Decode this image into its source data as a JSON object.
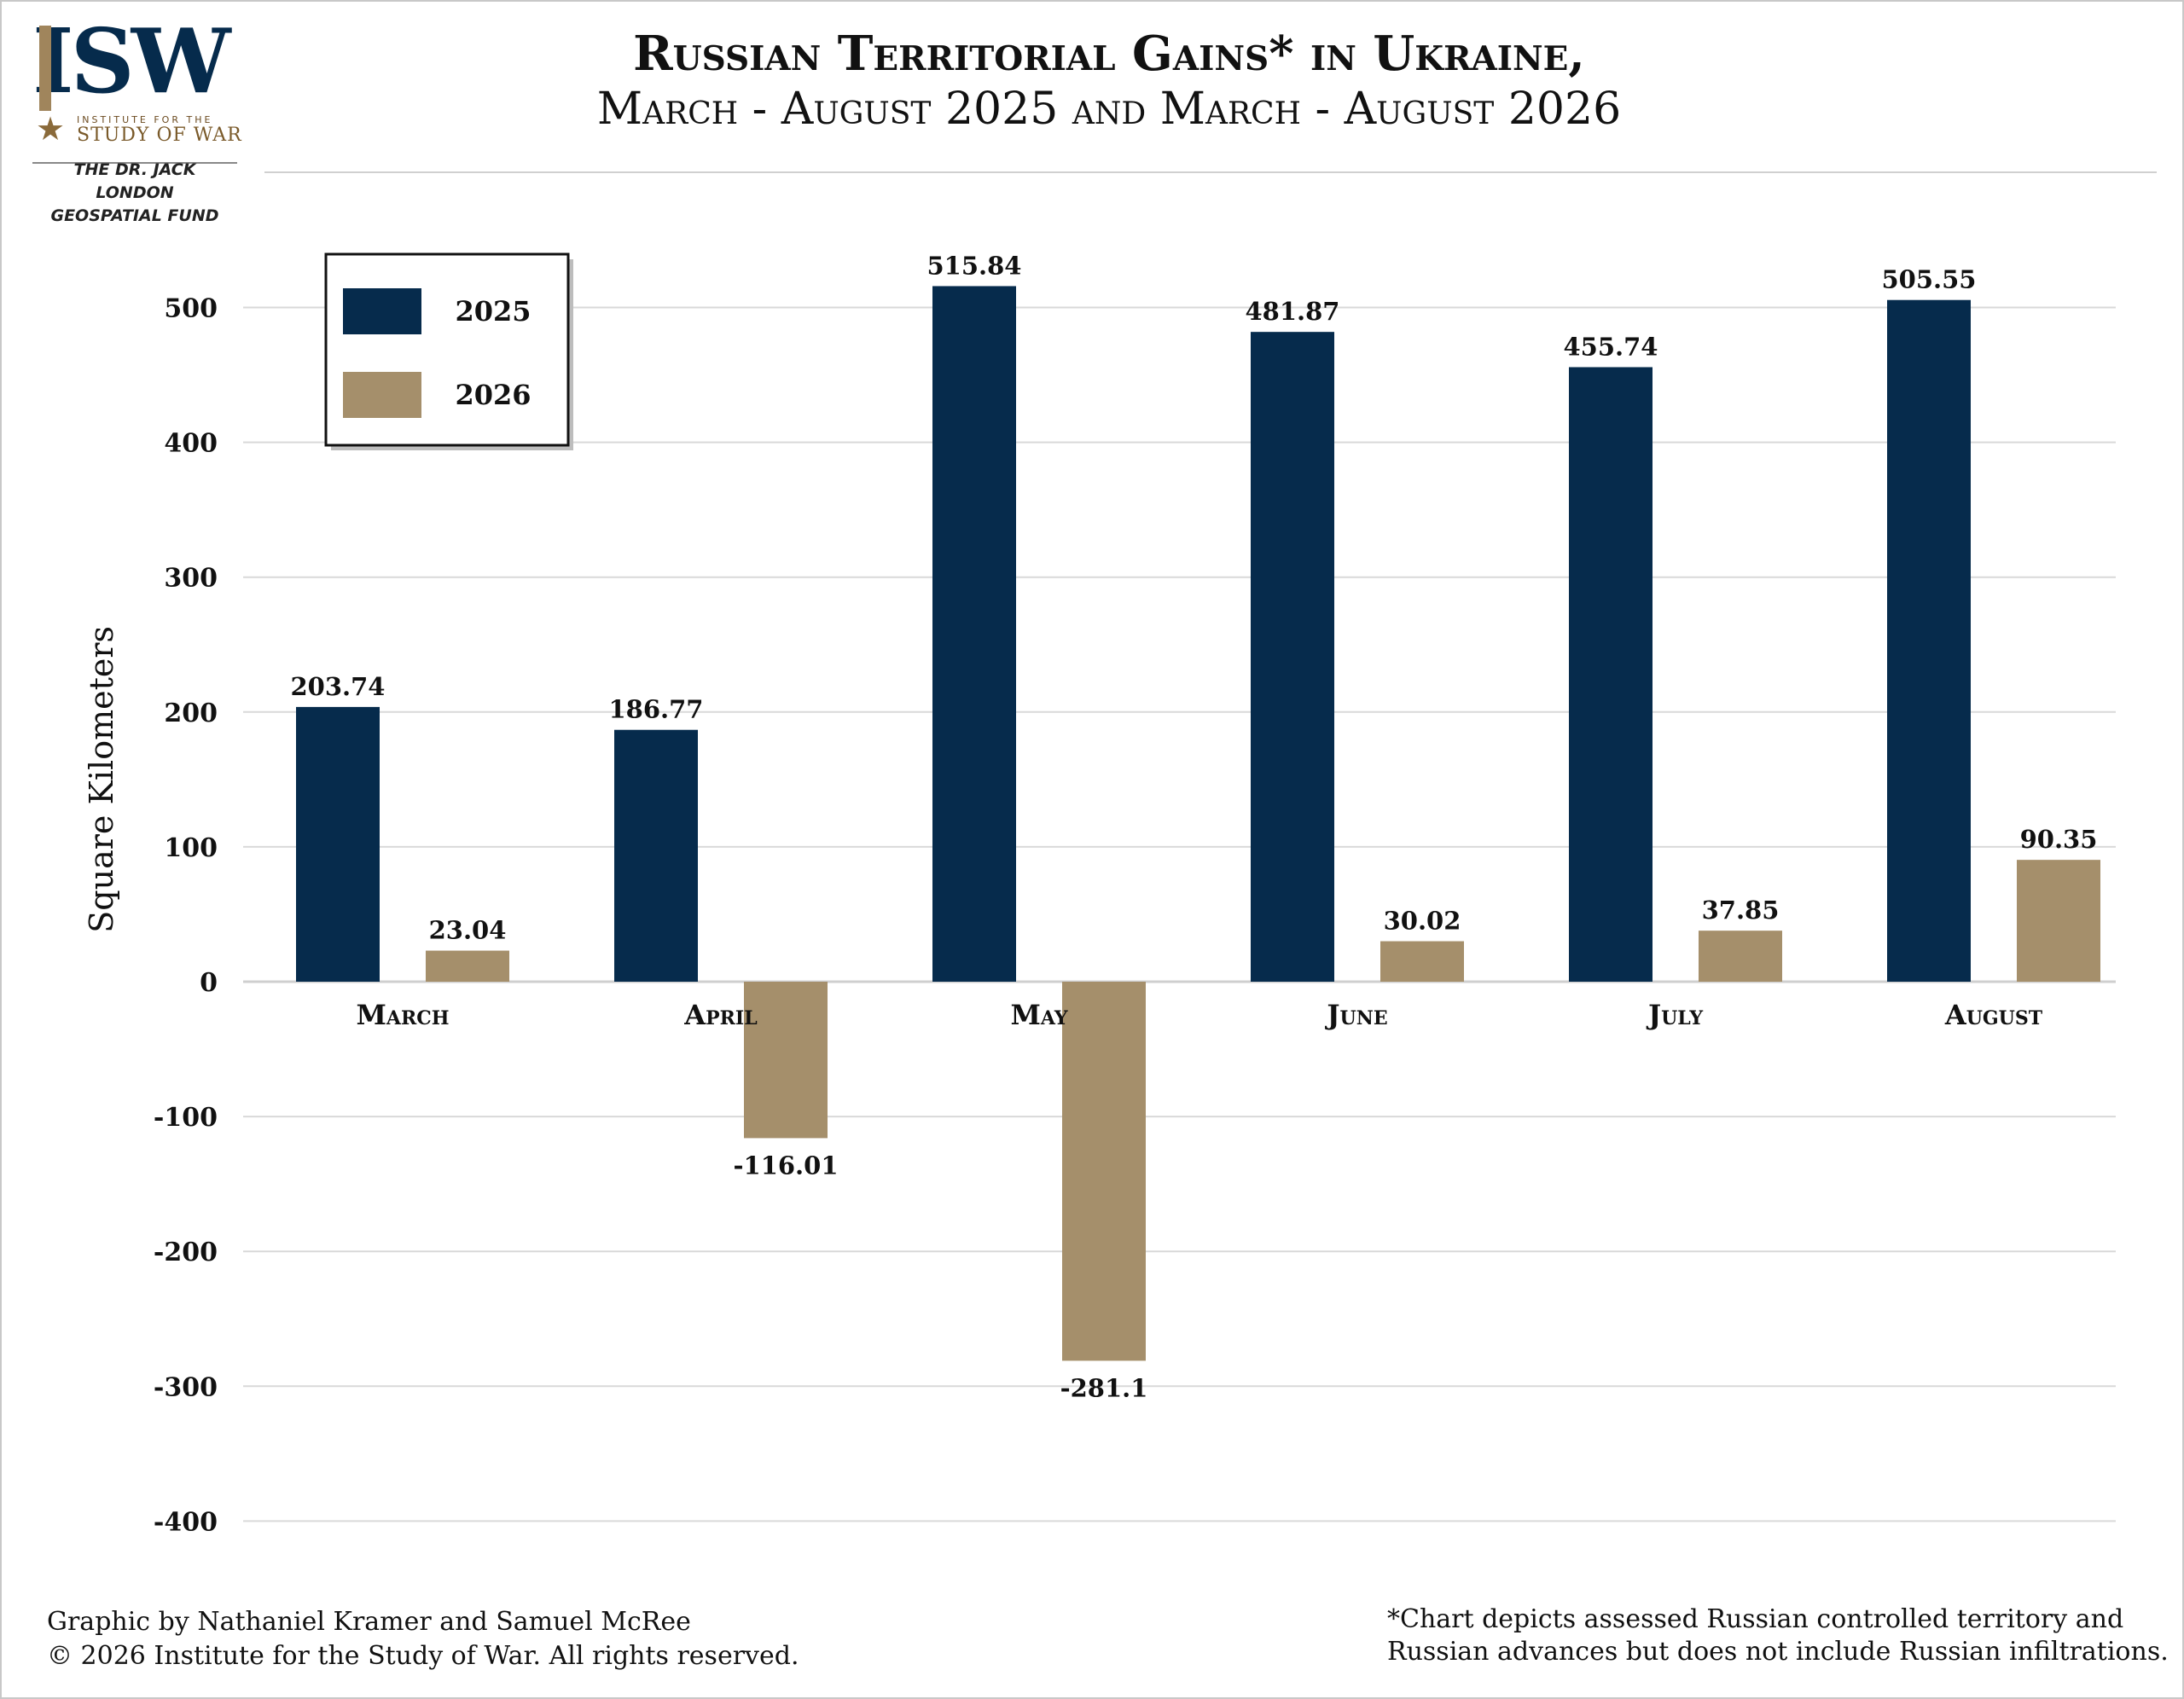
{
  "logo": {
    "wordmark": "ISW",
    "institute_line": "INSTITUTE FOR THE",
    "name_line": "STUDY OF WAR"
  },
  "fund": {
    "line1": "THE DR. JACK LONDON",
    "line2": "GEOSPATIAL FUND"
  },
  "header": {
    "title_line1": "Russian Territorial Gains* in Ukraine,",
    "title_line2": "March - August 2025 and March - August 2026"
  },
  "footer": {
    "credit_line1": "Graphic by Nathaniel Kramer and Samuel McRee",
    "credit_line2": "© 2026 Institute for the Study of War. All rights reserved.",
    "note_line1": "*Chart depicts assessed Russian controlled territory and",
    "note_line2": "Russian advances but does not include Russian infiltrations."
  },
  "colors": {
    "series_2025": "#062b4c",
    "series_2026": "#a58f6b",
    "grid": "#d9d9d9"
  },
  "chart_data": {
    "type": "bar",
    "title": "Russian Territorial Gains* in Ukraine, March - August 2025 and March - August 2026",
    "ylabel": "Square Kilometers",
    "xlabel": "",
    "categories": [
      "March",
      "April",
      "May",
      "June",
      "July",
      "August"
    ],
    "series": [
      {
        "name": "2025",
        "values": [
          203.74,
          186.77,
          515.84,
          481.87,
          455.74,
          505.55
        ],
        "labels": [
          "203.74",
          "186.77",
          "515.84",
          "481.87",
          "455.74",
          "505.55"
        ]
      },
      {
        "name": "2026",
        "values": [
          23.04,
          -116.01,
          -281.1,
          30.02,
          37.85,
          90.35
        ],
        "labels": [
          "23.04",
          "-116.01",
          "-281.1",
          "30.02",
          "37.85",
          "90.35"
        ]
      }
    ],
    "ylim": [
      -400,
      600
    ],
    "yticks": [
      -400,
      -300,
      -200,
      -100,
      0,
      100,
      200,
      300,
      400,
      500
    ],
    "grid": true,
    "legend": "top-left"
  }
}
